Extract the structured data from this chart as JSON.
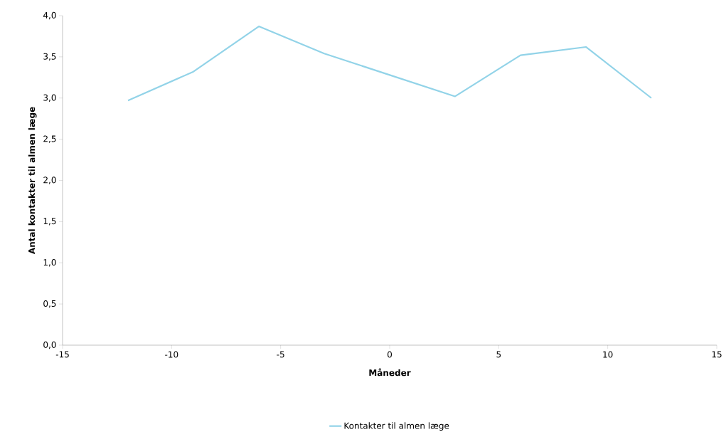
{
  "chart_data": {
    "type": "line",
    "xlabel": "Måneder",
    "ylabel": "Antal kontakter til almen læge",
    "series": [
      {
        "name": "Kontakter til almen læge",
        "color": "#92d3e8",
        "x": [
          -12,
          -9,
          -6,
          -3,
          0,
          3,
          6,
          9,
          12
        ],
        "values": [
          2.97,
          3.32,
          3.87,
          3.54,
          3.28,
          3.02,
          3.52,
          3.62,
          3.0
        ]
      }
    ],
    "xlim": [
      -15,
      15
    ],
    "xticks": [
      -15,
      -10,
      -5,
      0,
      5,
      10,
      15
    ],
    "ylim": [
      0,
      4
    ],
    "yticks": [
      {
        "value": 0,
        "label": "0,0"
      },
      {
        "value": 0.5,
        "label": "0,5"
      },
      {
        "value": 1,
        "label": "1,0"
      },
      {
        "value": 1.5,
        "label": "1,5"
      },
      {
        "value": 2,
        "label": "2,0"
      },
      {
        "value": 2.5,
        "label": "2,5"
      },
      {
        "value": 3,
        "label": "3,0"
      },
      {
        "value": 3.5,
        "label": "3,5"
      },
      {
        "value": 4,
        "label": "4,0"
      }
    ],
    "grid": false,
    "legend": "bottom",
    "marker": "none",
    "line_style": "solid"
  }
}
